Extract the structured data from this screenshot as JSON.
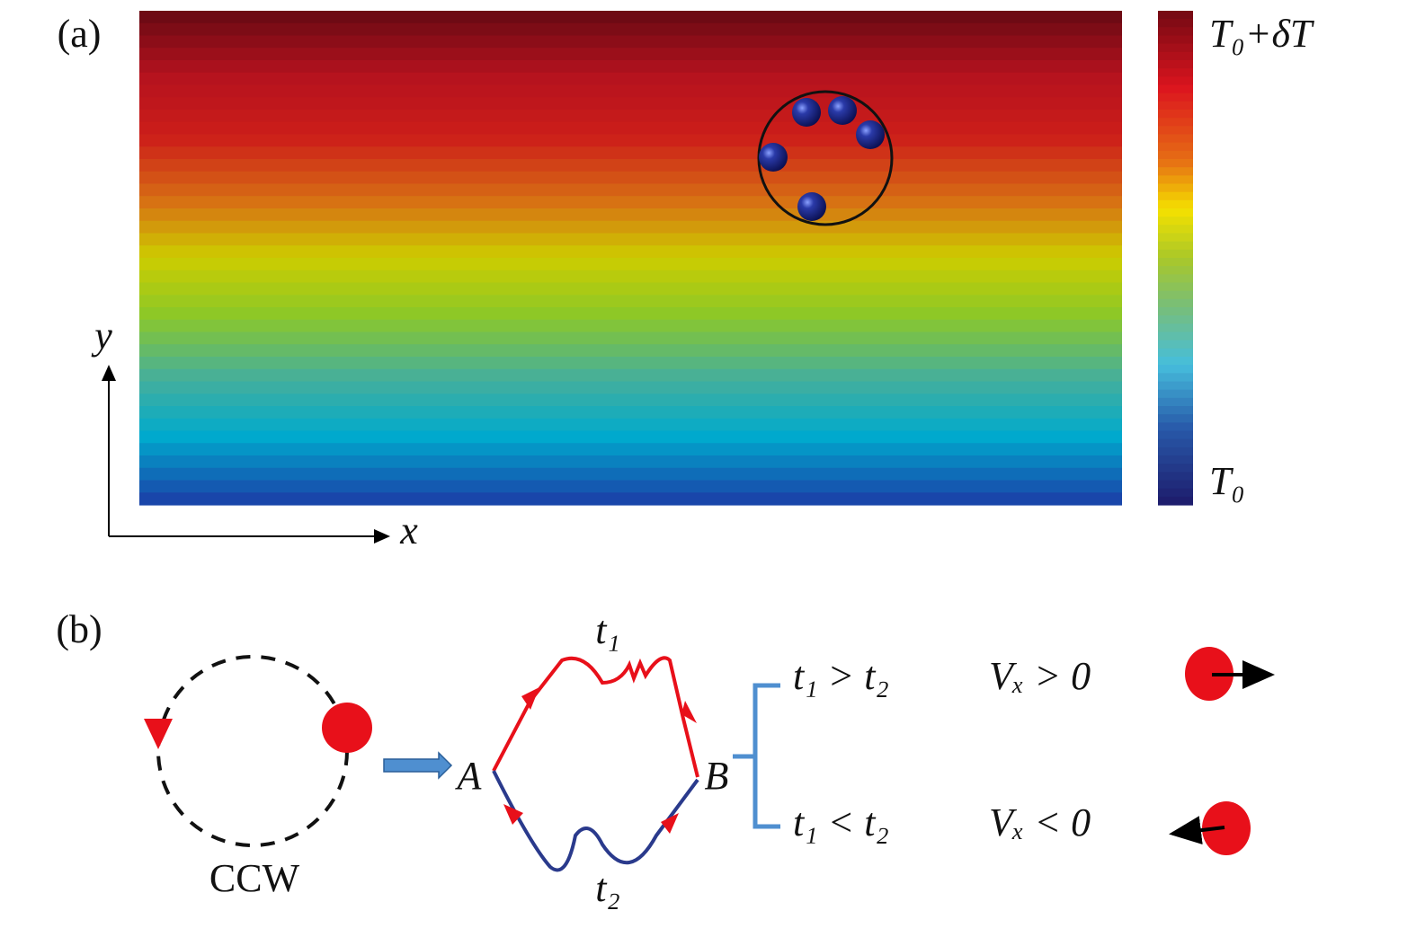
{
  "panel_a": {
    "label": "(a)",
    "colorbar": {
      "max_label": "T₀+δT",
      "min_label": "T₀"
    },
    "axes": {
      "y_label": "y",
      "x_label": "x"
    }
  },
  "panel_b": {
    "label": "(b)",
    "orbit_label": "CCW",
    "path_top_label": "t₁",
    "path_bottom_label": "t₂",
    "point_a": "A",
    "point_b": "B",
    "cases": [
      {
        "condition": "t₁ > t₂",
        "result": "Vₓ > 0"
      },
      {
        "condition": "t₁ < t₂",
        "result": "Vₓ < 0"
      }
    ]
  }
}
